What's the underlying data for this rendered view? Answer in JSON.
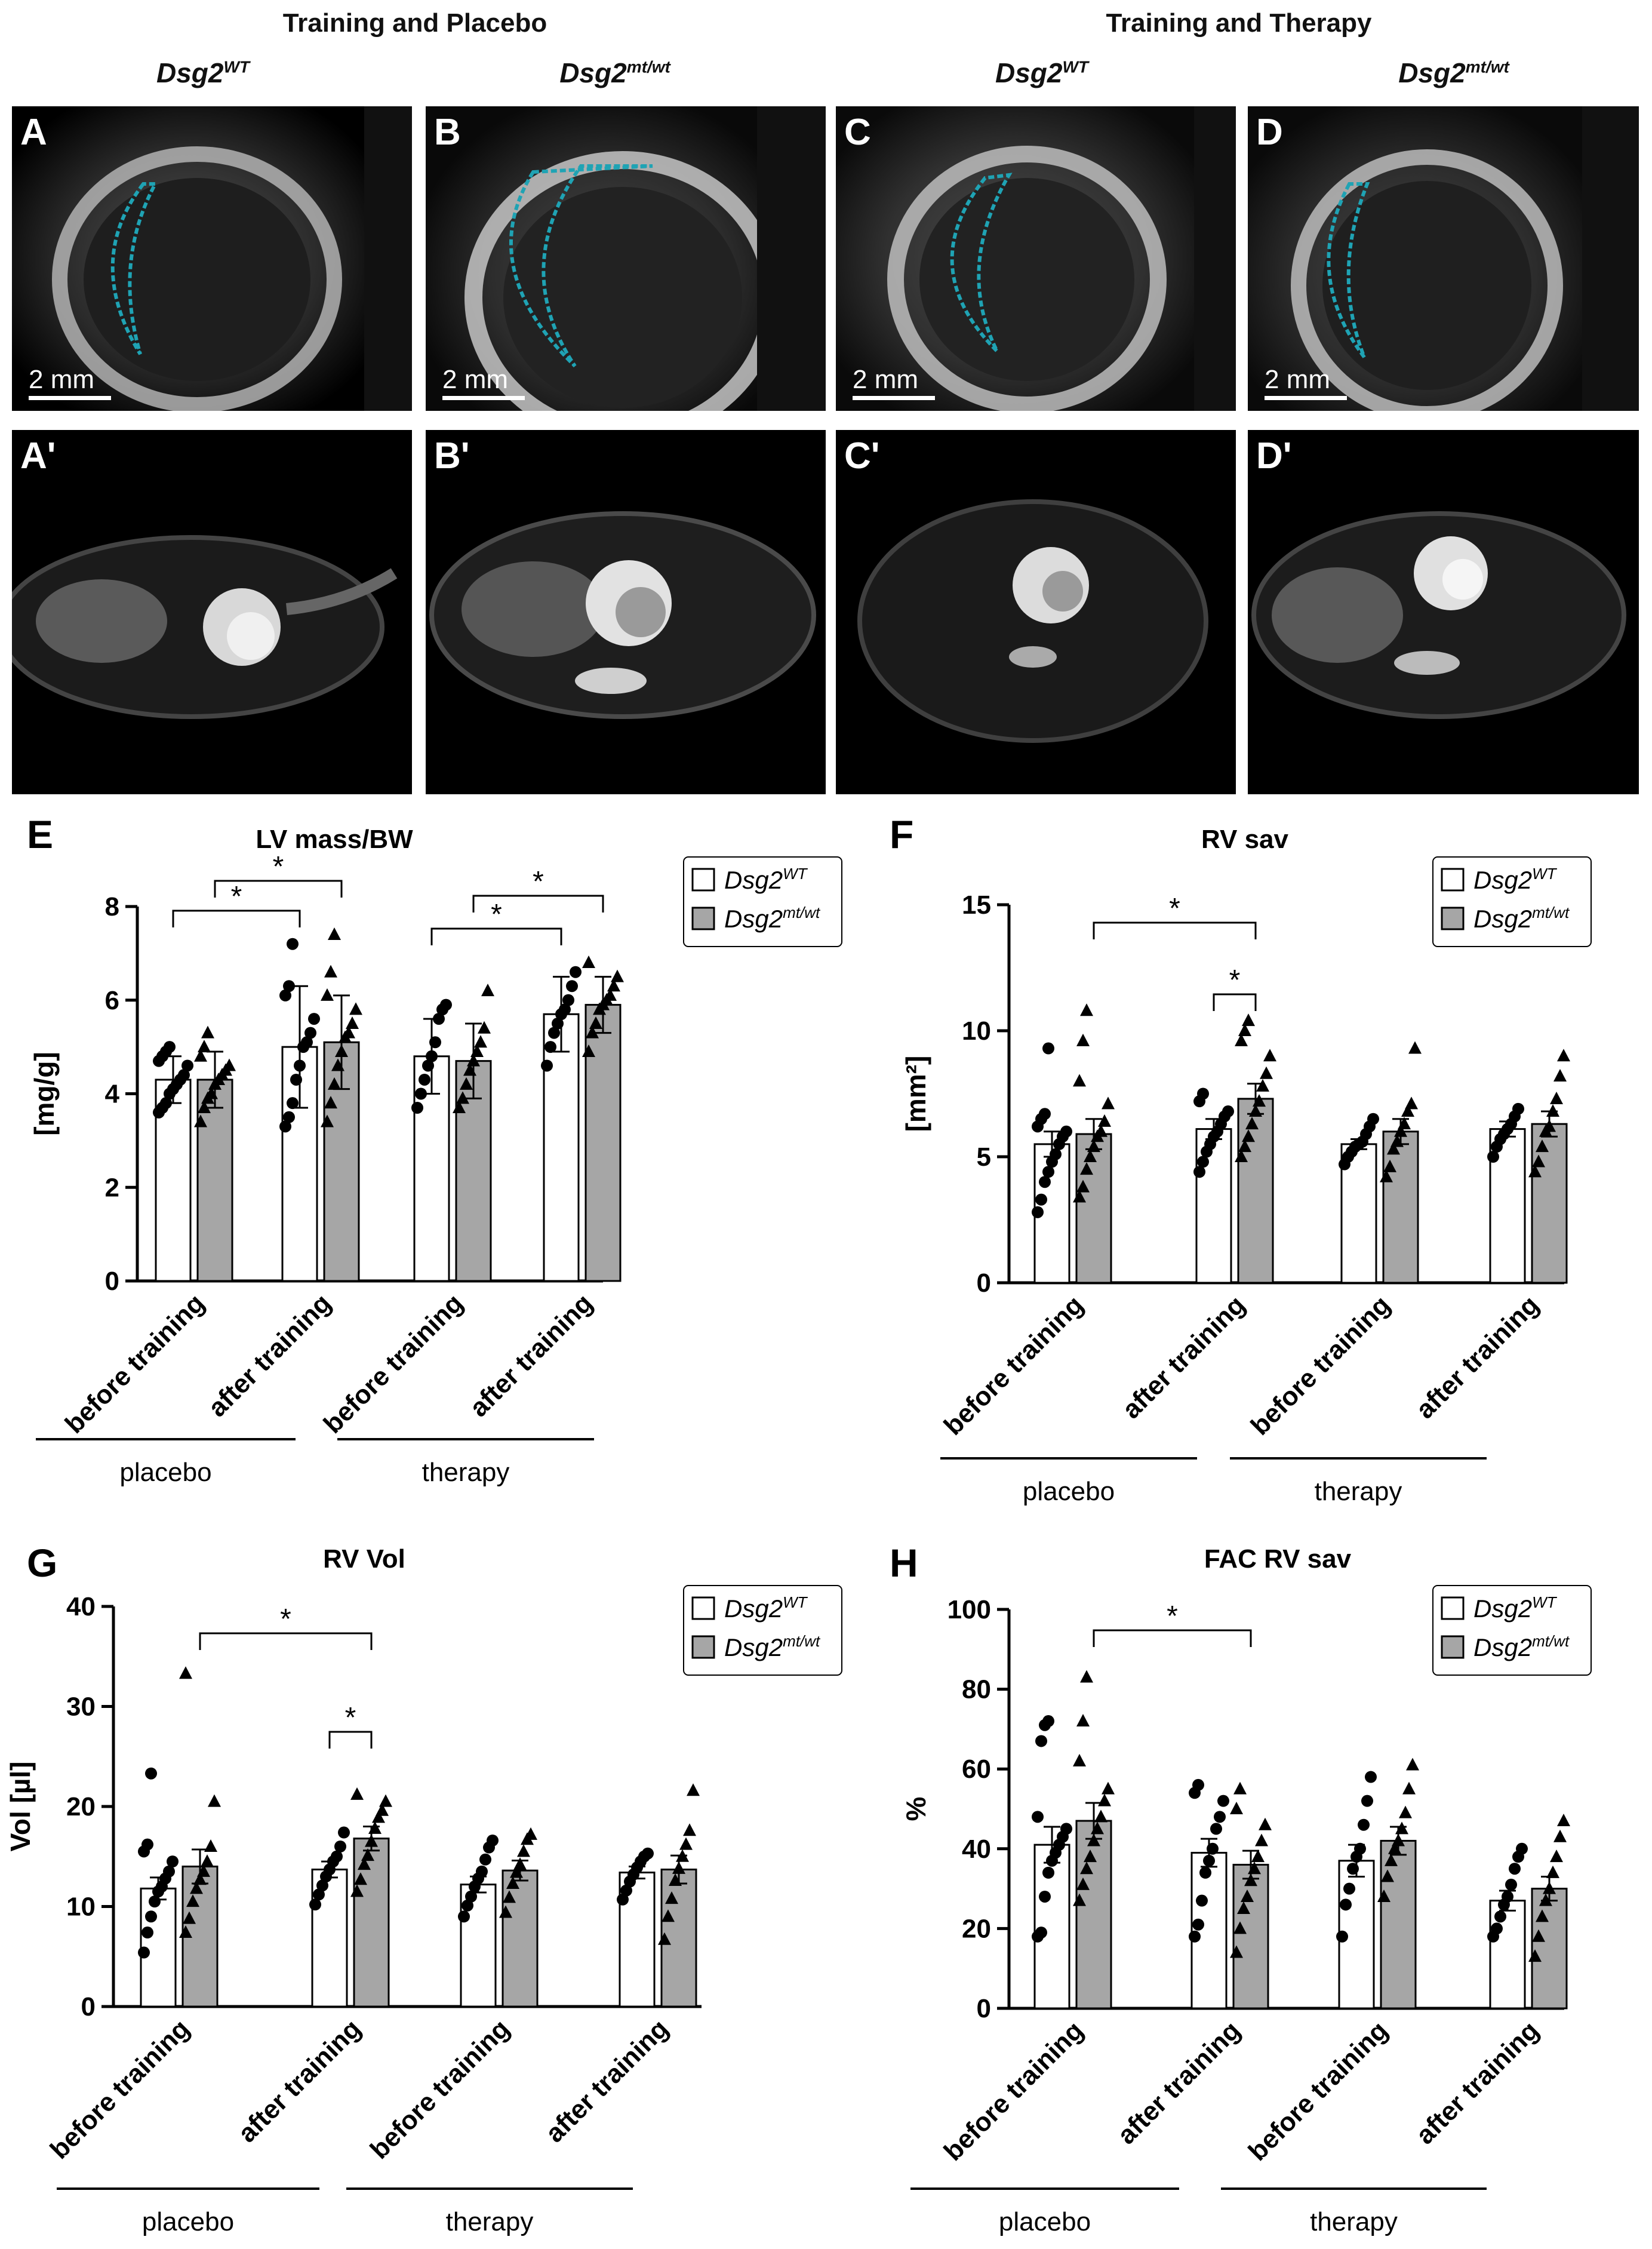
{
  "headers": {
    "left_group": "Training and Placebo",
    "right_group": "Training and Therapy",
    "genotypes": [
      {
        "base": "Dsg2",
        "sup": "WT"
      },
      {
        "base": "Dsg2",
        "sup": "mt/wt"
      },
      {
        "base": "Dsg2",
        "sup": "WT"
      },
      {
        "base": "Dsg2",
        "sup": "mt/wt"
      }
    ]
  },
  "echo_panels": [
    {
      "label": "A",
      "scale": "2 mm"
    },
    {
      "label": "B",
      "scale": "2 mm"
    },
    {
      "label": "C",
      "scale": "2 mm"
    },
    {
      "label": "D",
      "scale": "2 mm"
    }
  ],
  "mri_panels": [
    {
      "label": "A'"
    },
    {
      "label": "B'"
    },
    {
      "label": "C'"
    },
    {
      "label": "D'"
    }
  ],
  "colors": {
    "wt_fill": "#ffffff",
    "mut_fill": "#a6a6a6",
    "echo_trace": "#1fa3b4"
  },
  "legend": {
    "wt": {
      "base": "Dsg2",
      "sup": "WT"
    },
    "mut": {
      "base": "Dsg2",
      "sup": "mt/wt"
    }
  },
  "group_labels": [
    "placebo",
    "therapy"
  ],
  "chart_data": [
    {
      "panel": "E",
      "type": "bar",
      "title": "LV mass/BW",
      "ylabel": "[mg/g]",
      "ylim": [
        0,
        8
      ],
      "yticks": [
        0,
        2,
        4,
        6,
        8
      ],
      "categories": [
        "before training",
        "after training",
        "before training",
        "after training"
      ],
      "series": [
        {
          "name": "Dsg2 WT",
          "values": [
            4.3,
            5.0,
            4.8,
            5.7
          ],
          "sd": [
            0.5,
            1.3,
            0.8,
            0.8
          ],
          "points": [
            [
              3.6,
              3.7,
              3.8,
              4.0,
              4.1,
              4.2,
              4.3,
              4.4,
              4.6,
              4.7,
              4.8,
              4.9,
              5.0
            ],
            [
              3.3,
              3.5,
              3.8,
              4.3,
              4.6,
              5.0,
              5.1,
              5.3,
              5.6,
              6.1,
              6.3,
              7.2
            ],
            [
              3.7,
              4.0,
              4.3,
              4.6,
              4.8,
              5.1,
              5.6,
              5.8,
              5.9
            ],
            [
              4.6,
              5.0,
              5.3,
              5.5,
              5.7,
              5.8,
              6.0,
              6.3,
              6.6
            ]
          ]
        },
        {
          "name": "Dsg2 mt/wt",
          "values": [
            4.3,
            5.1,
            4.7,
            5.9
          ],
          "sd": [
            0.6,
            1.0,
            0.8,
            0.6
          ],
          "points": [
            [
              3.4,
              3.7,
              3.9,
              4.0,
              4.2,
              4.3,
              4.4,
              4.5,
              4.6,
              4.8,
              5.0,
              5.3
            ],
            [
              3.4,
              3.8,
              4.2,
              4.6,
              4.9,
              5.2,
              5.3,
              5.5,
              5.8,
              6.1,
              6.6,
              7.4
            ],
            [
              3.7,
              3.9,
              4.2,
              4.5,
              4.7,
              4.9,
              5.1,
              5.4,
              6.2
            ],
            [
              4.9,
              5.3,
              5.5,
              5.8,
              5.9,
              6.0,
              6.1,
              6.3,
              6.5,
              6.8
            ]
          ]
        }
      ],
      "significance": [
        {
          "label": "*",
          "between": "placebo before WT vs after WT"
        },
        {
          "label": "*",
          "between": "placebo before mt/wt vs after mt/wt"
        },
        {
          "label": "*",
          "between": "therapy before WT vs after WT"
        },
        {
          "label": "*",
          "between": "therapy before mt/wt vs after mt/wt"
        }
      ]
    },
    {
      "panel": "F",
      "type": "bar",
      "title": "RV sav",
      "ylabel": "[mm²]",
      "ylim": [
        0,
        15
      ],
      "yticks": [
        0,
        5,
        10,
        15
      ],
      "categories": [
        "before training",
        "after training",
        "before training",
        "after training"
      ],
      "series": [
        {
          "name": "Dsg2 WT",
          "values": [
            5.5,
            6.1,
            5.5,
            6.1
          ],
          "sem": [
            0.5,
            0.4,
            0.2,
            0.3
          ],
          "points": [
            [
              2.8,
              3.3,
              4.0,
              4.4,
              4.8,
              5.1,
              5.5,
              5.8,
              6.0,
              6.2,
              6.5,
              6.7,
              9.3
            ],
            [
              4.4,
              4.8,
              5.2,
              5.5,
              5.8,
              6.0,
              6.3,
              6.6,
              6.8,
              7.2,
              7.5
            ],
            [
              4.7,
              5.0,
              5.2,
              5.4,
              5.5,
              5.6,
              5.9,
              6.2,
              6.5
            ],
            [
              5.0,
              5.4,
              5.7,
              5.9,
              6.1,
              6.3,
              6.6,
              6.9
            ]
          ]
        },
        {
          "name": "Dsg2 mt/wt",
          "values": [
            5.9,
            7.3,
            6.0,
            6.3
          ],
          "sem": [
            0.6,
            0.6,
            0.5,
            0.5
          ],
          "points": [
            [
              3.4,
              3.8,
              4.5,
              5.0,
              5.4,
              5.8,
              6.0,
              6.4,
              7.1,
              8.0,
              9.6,
              10.8
            ],
            [
              5.0,
              5.4,
              5.8,
              6.3,
              6.8,
              7.2,
              7.8,
              8.3,
              9.0,
              9.6,
              10.0,
              10.4
            ],
            [
              4.2,
              4.6,
              5.3,
              5.6,
              6.0,
              6.3,
              6.8,
              7.1,
              9.3
            ],
            [
              4.4,
              4.8,
              5.4,
              6.0,
              6.2,
              6.8,
              7.3,
              8.2,
              9.0
            ]
          ]
        }
      ],
      "significance": [
        {
          "label": "*",
          "between": "before training mt/wt vs after training mt/wt"
        },
        {
          "label": "*",
          "between": "after training WT vs after training mt/wt"
        }
      ]
    },
    {
      "panel": "G",
      "type": "bar",
      "title": "RV Vol",
      "ylabel": "Vol [µl]",
      "ylim": [
        0,
        40
      ],
      "yticks": [
        0,
        10,
        20,
        30,
        40
      ],
      "categories": [
        "before training",
        "after training",
        "before training",
        "after training"
      ],
      "series": [
        {
          "name": "Dsg2 WT",
          "values": [
            11.8,
            13.7,
            12.2,
            13.4
          ],
          "sem": [
            1.1,
            0.8,
            0.8,
            0.6
          ],
          "points": [
            [
              5.4,
              7.4,
              9.0,
              10.5,
              11.5,
              12.0,
              12.8,
              13.5,
              14.5,
              15.5,
              16.2,
              23.3
            ],
            [
              10.2,
              11.2,
              12.1,
              13.0,
              13.7,
              14.5,
              15.0,
              16.0,
              17.4
            ],
            [
              9.0,
              10.1,
              11.0,
              12.0,
              12.8,
              13.5,
              14.7,
              15.9,
              16.6
            ],
            [
              10.7,
              11.6,
              12.5,
              13.2,
              13.9,
              14.5,
              15.0,
              15.3
            ]
          ]
        },
        {
          "name": "Dsg2 mt/wt",
          "values": [
            14.0,
            16.8,
            13.6,
            13.7
          ],
          "sem": [
            1.7,
            1.2,
            1.0,
            1.4
          ],
          "points": [
            [
              7.4,
              8.8,
              10.5,
              11.8,
              12.7,
              13.5,
              14.5,
              16.0,
              20.5,
              33.3
            ],
            [
              11.5,
              12.7,
              14.2,
              15.1,
              16.5,
              17.8,
              18.9,
              19.6,
              20.5,
              21.2
            ],
            [
              9.4,
              10.9,
              12.3,
              13.4,
              14.2,
              15.5,
              16.7,
              17.2
            ],
            [
              6.7,
              9.0,
              10.8,
              12.6,
              13.8,
              15.0,
              16.2,
              17.6,
              21.6
            ]
          ]
        }
      ],
      "significance": [
        {
          "label": "*",
          "between": "before training mt/wt vs after training mt/wt"
        },
        {
          "label": "*",
          "between": "after training WT vs after training mt/wt"
        }
      ]
    },
    {
      "panel": "H",
      "type": "bar",
      "title": "FAC RV sav",
      "ylabel": "%",
      "ylim": [
        0,
        100
      ],
      "yticks": [
        0,
        20,
        40,
        60,
        80,
        100
      ],
      "categories": [
        "before training",
        "after training",
        "before training",
        "after training"
      ],
      "series": [
        {
          "name": "Dsg2 WT",
          "values": [
            41,
            39,
            37,
            27
          ],
          "sem": [
            4.5,
            3.5,
            4,
            2.5
          ],
          "points": [
            [
              18,
              19,
              28,
              34,
              37,
              39,
              41,
              43,
              45,
              48,
              67,
              71,
              72
            ],
            [
              18,
              21,
              27,
              34,
              37,
              40,
              45,
              48,
              52,
              54,
              56
            ],
            [
              18,
              26,
              30,
              35,
              38,
              40,
              46,
              52,
              58
            ],
            [
              18,
              20,
              23,
              26,
              28,
              31,
              35,
              38,
              40
            ]
          ]
        },
        {
          "name": "Dsg2 mt/wt",
          "values": [
            47,
            36,
            42,
            30
          ],
          "sem": [
            4.5,
            3.5,
            3.5,
            3
          ]
        },
        {
          "name": "points_mt",
          "points": [
            [
              27,
              31,
              35,
              38,
              42,
              45,
              48,
              52,
              55,
              62,
              72,
              83
            ],
            [
              14,
              20,
              25,
              28,
              32,
              35,
              38,
              42,
              46,
              50,
              55
            ],
            [
              28,
              33,
              37,
              40,
              42,
              45,
              49,
              55,
              61
            ],
            [
              13,
              18,
              23,
              27,
              30,
              34,
              38,
              43,
              47
            ]
          ]
        }
      ],
      "significance": [
        {
          "label": "*",
          "between": "before training mt/wt vs after training mt/wt"
        }
      ]
    }
  ]
}
